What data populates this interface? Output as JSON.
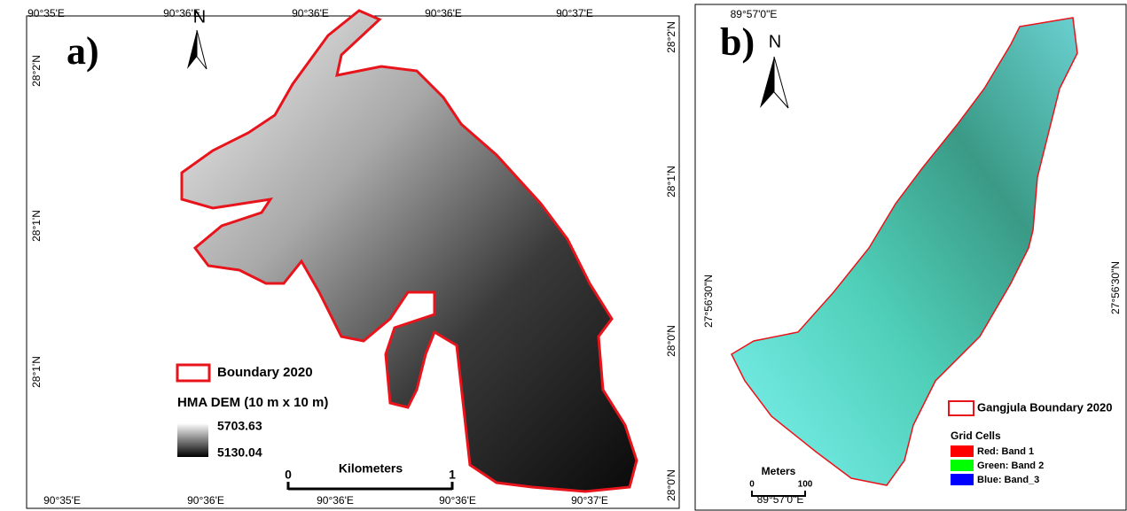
{
  "panel_a": {
    "label": "a)",
    "north": "N",
    "top_labels": [
      "90°35'E",
      "90°36'E",
      "90°36'E",
      "90°36'E",
      "90°37'E"
    ],
    "bottom_labels": [
      "90°35'E",
      "90°36'E",
      "90°36'E",
      "90°36'E",
      "90°37'E"
    ],
    "left_labels": [
      "28°2'N",
      "28°1'N",
      "28°1'N"
    ],
    "right_labels": [
      "28°2'N",
      "28°1'N",
      "28°0'N",
      "28°0'N"
    ],
    "legend": {
      "boundary": "Boundary 2020",
      "dem_title": "HMA DEM (10 m x 10 m)",
      "dem_max": "5703.63",
      "dem_min": "5130.04"
    },
    "scale": {
      "title": "Kilometers",
      "start": "0",
      "end": "1"
    }
  },
  "panel_b": {
    "label": "b)",
    "north": "N",
    "top_labels": [
      "89°57'0\"E"
    ],
    "bottom_labels": [
      "89°57'0\"E"
    ],
    "left_labels": [
      "27°56'30\"N"
    ],
    "right_labels": [
      "27°56'30\"N"
    ],
    "legend": {
      "boundary": "Gangjula Boundary 2020",
      "grid_title": "Grid Cells",
      "red": "Red:  Band 1",
      "green": "Green:  Band 2",
      "blue": "Blue:  Band_3"
    },
    "scale": {
      "title": "Meters",
      "start": "0",
      "end": "100"
    }
  }
}
